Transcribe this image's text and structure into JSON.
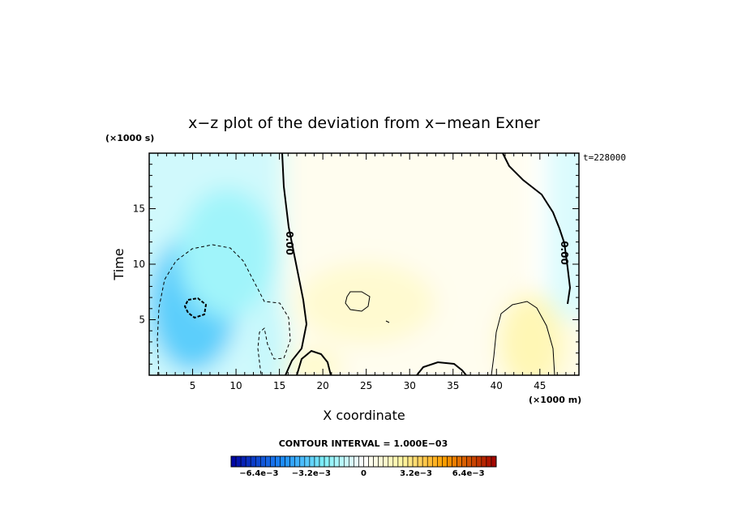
{
  "chart_data": {
    "type": "heatmap",
    "title": "x−z plot of the deviation from x−mean Exner",
    "xlabel": "X coordinate",
    "ylabel": "Time",
    "x_unit": "(×1000 m)",
    "y_unit": "(×1000 s)",
    "time_label": "t=228000",
    "xlim": [
      0,
      49.5
    ],
    "ylim": [
      0,
      20
    ],
    "xticks": [
      5,
      10,
      15,
      20,
      25,
      30,
      35,
      40,
      45
    ],
    "yticks": [
      5,
      10,
      15
    ],
    "xtick_labels": [
      "5",
      "10",
      "15",
      "20",
      "25",
      "30",
      "35",
      "40",
      "45"
    ],
    "ytick_labels": [
      "5",
      "10",
      "15"
    ],
    "contour_interval_text": "CONTOUR INTERVAL = 1.000E−03",
    "contour_labels": [
      "0.00",
      "0.00"
    ],
    "colorbar": {
      "min": -0.0081,
      "max": 0.0081,
      "labels": [
        "−6.4e−3",
        "−3.2e−3",
        "0",
        "3.2e−3",
        "6.4e−3"
      ],
      "label_values": [
        -0.0064,
        -0.0032,
        0,
        0.0032,
        0.0064
      ]
    },
    "colors": {
      "neg_strong": "#0000a0",
      "neg_mid": "#1e90ff",
      "neg_light": "#7ff0f8",
      "neutral": "#ffffff",
      "pos_light": "#fff5a0",
      "pos_mid": "#ffa000",
      "pos_strong": "#a00000"
    },
    "field_features": [
      {
        "x": 5,
        "y": 6.5,
        "value": -0.0033
      },
      {
        "x": 9,
        "y": 11,
        "value": -0.0018
      },
      {
        "x": 14,
        "y": 3,
        "value": -0.0011
      },
      {
        "x": 25,
        "y": 6.5,
        "value": 0.0012
      },
      {
        "x": 44,
        "y": 3,
        "value": 0.0019
      },
      {
        "x": 19,
        "y": 0.8,
        "value": 0.0013
      }
    ]
  }
}
